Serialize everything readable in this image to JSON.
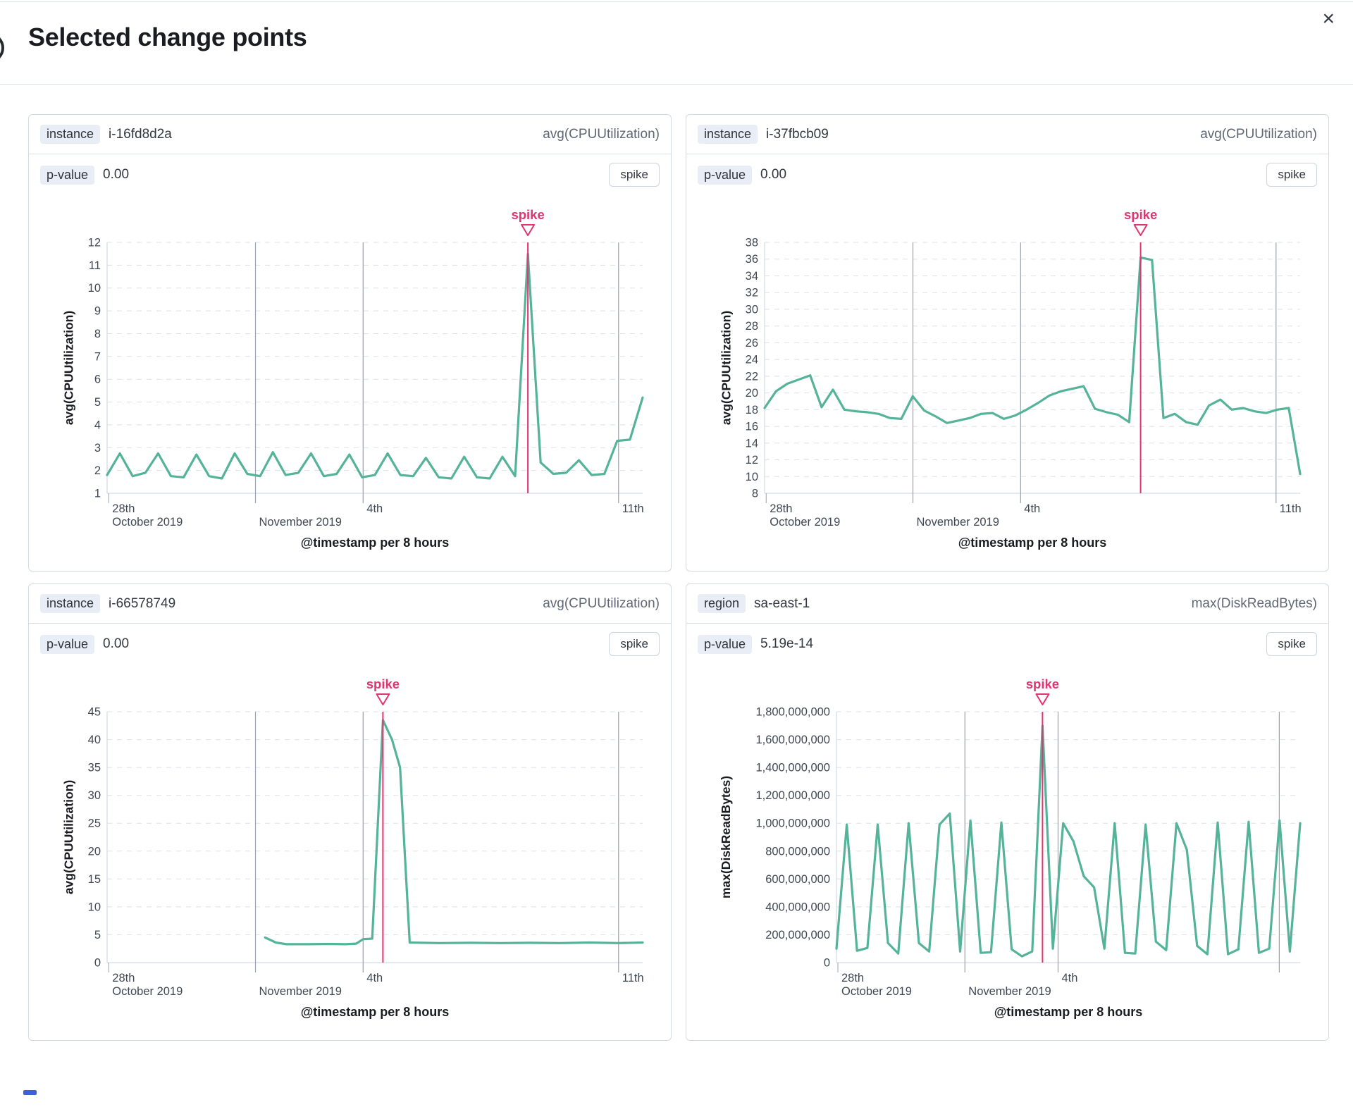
{
  "modal": {
    "title": "Selected change points",
    "close_label": "×"
  },
  "theme": {
    "series_color": "#54b399",
    "annotation_color": "#e2346f"
  },
  "panels": [
    {
      "badge": "instance",
      "entity": "i-16fd8d2a",
      "metric": "avg(CPUUtilization)",
      "p_label": "p-value",
      "p_value": "0.00",
      "button": "spike",
      "chart": {
        "type": "line",
        "ylabel": "avg(CPUUtilization)",
        "xlabel": "@timestamp per 8 hours",
        "ylim": [
          1,
          12
        ],
        "ytick_step": 1,
        "annotation": "spike",
        "x_ticks": [
          {
            "frac": 0.003,
            "top": "28th",
            "bottom": "October 2019",
            "full_line": false
          },
          {
            "frac": 0.277,
            "bottom": "November 2019",
            "full_line": true
          },
          {
            "frac": 0.478,
            "top": "4th",
            "full_line": true
          },
          {
            "frac": 0.955,
            "top": "11th",
            "full_line": true
          }
        ],
        "values": [
          1.8,
          2.75,
          1.75,
          1.9,
          2.75,
          1.75,
          1.7,
          2.7,
          1.75,
          1.65,
          2.75,
          1.85,
          1.75,
          2.8,
          1.8,
          1.9,
          2.75,
          1.75,
          1.85,
          2.7,
          1.7,
          1.8,
          2.75,
          1.8,
          1.75,
          2.55,
          1.7,
          1.65,
          2.6,
          1.7,
          1.65,
          2.6,
          1.75,
          11.5,
          2.35,
          1.85,
          1.9,
          2.45,
          1.8,
          1.85,
          3.3,
          3.35,
          5.2
        ]
      }
    },
    {
      "badge": "instance",
      "entity": "i-37fbcb09",
      "metric": "avg(CPUUtilization)",
      "p_label": "p-value",
      "p_value": "0.00",
      "button": "spike",
      "chart": {
        "type": "line",
        "ylabel": "avg(CPUUtilization)",
        "xlabel": "@timestamp per 8 hours",
        "ylim": [
          8,
          38
        ],
        "ytick_step": 2,
        "annotation": "spike",
        "x_ticks": [
          {
            "frac": 0.003,
            "top": "28th",
            "bottom": "October 2019",
            "full_line": false
          },
          {
            "frac": 0.277,
            "bottom": "November 2019",
            "full_line": true
          },
          {
            "frac": 0.478,
            "top": "4th",
            "full_line": true
          },
          {
            "frac": 0.955,
            "top": "11th",
            "full_line": true
          }
        ],
        "values": [
          18.2,
          20.2,
          21.1,
          21.6,
          22.1,
          18.3,
          20.4,
          18,
          17.8,
          17.7,
          17.5,
          17,
          16.9,
          19.6,
          17.9,
          17.2,
          16.4,
          16.7,
          17,
          17.5,
          17.6,
          16.9,
          17.3,
          18,
          18.8,
          19.7,
          20.2,
          20.5,
          20.8,
          18.1,
          17.7,
          17.4,
          16.5,
          36.2,
          35.9,
          17,
          17.5,
          16.5,
          16.2,
          18.5,
          19.2,
          18,
          18.2,
          17.8,
          17.6,
          18,
          18.2,
          10.3
        ]
      }
    },
    {
      "badge": "instance",
      "entity": "i-66578749",
      "metric": "avg(CPUUtilization)",
      "p_label": "p-value",
      "p_value": "0.00",
      "button": "spike",
      "chart": {
        "type": "line",
        "ylabel": "avg(CPUUtilization)",
        "xlabel": "@timestamp per 8 hours",
        "ylim": [
          0,
          45
        ],
        "ytick_step": 5,
        "annotation": "spike",
        "x_ticks": [
          {
            "frac": 0.003,
            "top": "28th",
            "bottom": "October 2019",
            "full_line": false
          },
          {
            "frac": 0.277,
            "bottom": "November 2019",
            "full_line": true
          },
          {
            "frac": 0.478,
            "top": "4th",
            "full_line": true
          },
          {
            "frac": 0.955,
            "top": "11th",
            "full_line": true
          }
        ],
        "points": [
          [
            0.295,
            4.5
          ],
          [
            0.315,
            3.6
          ],
          [
            0.335,
            3.3
          ],
          [
            0.375,
            3.3
          ],
          [
            0.415,
            3.35
          ],
          [
            0.445,
            3.3
          ],
          [
            0.465,
            3.4
          ],
          [
            0.478,
            4.2
          ],
          [
            0.495,
            4.3
          ],
          [
            0.515,
            43.5
          ],
          [
            0.532,
            40.0
          ],
          [
            0.547,
            35.0
          ],
          [
            0.565,
            3.6
          ],
          [
            0.62,
            3.5
          ],
          [
            0.68,
            3.55
          ],
          [
            0.735,
            3.5
          ],
          [
            0.79,
            3.55
          ],
          [
            0.845,
            3.5
          ],
          [
            0.9,
            3.6
          ],
          [
            0.955,
            3.5
          ],
          [
            1.0,
            3.6
          ]
        ]
      }
    },
    {
      "badge": "region",
      "entity": "sa-east-1",
      "metric": "max(DiskReadBytes)",
      "p_label": "p-value",
      "p_value": "5.19e-14",
      "button": "spike",
      "chart": {
        "type": "line",
        "ylabel": "max(DiskReadBytes)",
        "xlabel": "@timestamp per 8 hours",
        "ylim": [
          0,
          1800000000
        ],
        "ytick_step": 200000000,
        "ytick_format": "comma",
        "annotation": "spike",
        "x_ticks": [
          {
            "frac": 0.003,
            "top": "28th",
            "bottom": "October 2019",
            "full_line": false
          },
          {
            "frac": 0.277,
            "bottom": "November 2019",
            "full_line": true
          },
          {
            "frac": 0.478,
            "top": "4th",
            "full_line": true
          },
          {
            "frac": 0.955,
            "full_line": true
          }
        ],
        "values": [
          100000000,
          990000000,
          85000000,
          105000000,
          990000000,
          140000000,
          65000000,
          1000000000,
          140000000,
          80000000,
          990000000,
          1070000000,
          80000000,
          1020000000,
          70000000,
          75000000,
          1005000000,
          95000000,
          45000000,
          80000000,
          1700000000,
          100000000,
          1000000000,
          870000000,
          620000000,
          540000000,
          100000000,
          1000000000,
          70000000,
          65000000,
          990000000,
          150000000,
          90000000,
          1000000000,
          810000000,
          120000000,
          60000000,
          1005000000,
          60000000,
          95000000,
          1010000000,
          70000000,
          100000000,
          1020000000,
          80000000,
          1000000000
        ]
      }
    }
  ]
}
